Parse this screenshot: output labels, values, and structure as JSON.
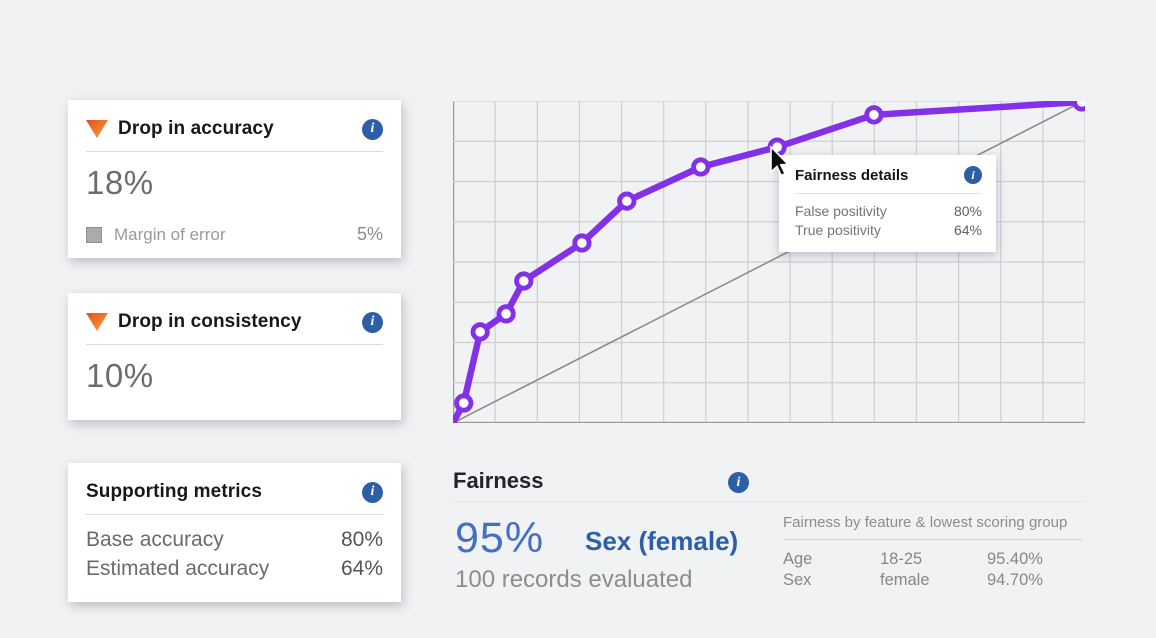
{
  "colors": {
    "background": "#f1f2f4",
    "card_background": "#ffffff",
    "accent_orange_dark": "#e4501e",
    "accent_orange_light": "#f9a13e",
    "info_blue": "#2d5fa7",
    "curve_purple": "#8331e8",
    "score_blue": "#4470c4",
    "group_blue": "#2d5fa8",
    "grid_line": "#cfcfd4",
    "axis_line": "#9d9da1",
    "diagonal_line": "#8c8c8c"
  },
  "cards": [
    {
      "title": "Drop in accuracy",
      "value": "18%",
      "legend_label": "Margin of error",
      "legend_value": "5%"
    },
    {
      "title": "Drop in consistency",
      "value": "10%"
    },
    {
      "title": "Supporting metrics",
      "rows": [
        {
          "label": "Base accuracy",
          "value": "80%"
        },
        {
          "label": "Estimated accuracy",
          "value": "64%"
        }
      ]
    }
  ],
  "chart_data": {
    "type": "line",
    "title": "",
    "xlabel": "",
    "ylabel": "",
    "xlim": [
      0,
      1
    ],
    "ylim": [
      0,
      1
    ],
    "grid": {
      "show": true,
      "cols": 15,
      "rows": 8
    },
    "legend": "none",
    "series": [
      {
        "name": "fairness curve",
        "color": "#8331e8",
        "marker": "circle-open",
        "points": [
          [
            0,
            0
          ],
          [
            0.017,
            0.062
          ],
          [
            0.043,
            0.283
          ],
          [
            0.084,
            0.339
          ],
          [
            0.112,
            0.441
          ],
          [
            0.204,
            0.559
          ],
          [
            0.275,
            0.689
          ],
          [
            0.392,
            0.795
          ],
          [
            0.513,
            0.857
          ],
          [
            0.666,
            0.957
          ],
          [
            0.995,
            0.997
          ]
        ],
        "skip_marker_indices": [
          0
        ]
      },
      {
        "name": "reference diagonal",
        "color": "#8c8c8c",
        "marker": "none",
        "points": [
          [
            0,
            0
          ],
          [
            0.995,
            0.997
          ]
        ]
      }
    ],
    "hovered_point": {
      "series": 0,
      "index": 8
    }
  },
  "tooltip": {
    "title": "Fairness details",
    "rows": [
      {
        "label": "False positivity",
        "value": "80%"
      },
      {
        "label": "True positivity",
        "value": "64%"
      }
    ]
  },
  "fairness": {
    "title": "Fairness",
    "score": "95%",
    "group": "Sex (female)",
    "records": "100 records evaluated",
    "table": {
      "heading": "Fairness by feature & lowest scoring group",
      "rows": [
        {
          "feature": "Age",
          "group": "18-25",
          "value": "95.40%"
        },
        {
          "feature": "Sex",
          "group": "female",
          "value": "94.70%"
        }
      ]
    }
  }
}
